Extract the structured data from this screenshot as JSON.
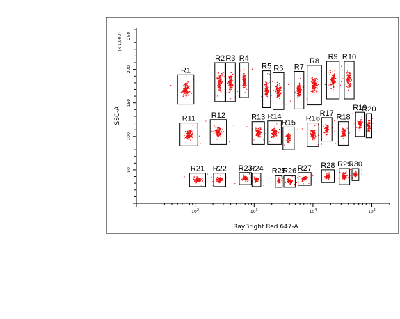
{
  "chart_data": {
    "type": "scatter",
    "xlabel": "RayBright Red 647-A",
    "ylabel": "SSC-A",
    "y_unit": "(x 1,000)",
    "x_scale": "log",
    "xlim": [
      10,
      200000
    ],
    "ylim": [
      0,
      262
    ],
    "x_ticks": [
      {
        "value": 100,
        "base": "10",
        "exp": "2"
      },
      {
        "value": 1000,
        "base": "10",
        "exp": "3"
      },
      {
        "value": 10000,
        "base": "10",
        "exp": "4"
      },
      {
        "value": 100000,
        "base": "10",
        "exp": "5"
      }
    ],
    "y_ticks": [
      {
        "value": 50,
        "label": "50"
      },
      {
        "value": 100,
        "label": "100"
      },
      {
        "value": 150,
        "label": "150"
      },
      {
        "value": 200,
        "label": "200"
      },
      {
        "value": 250,
        "label": "250"
      }
    ],
    "marker_color": "#ee1111",
    "gates": [
      {
        "name": "R1",
        "x": [
          50,
          95
        ],
        "y": [
          148,
          192
        ]
      },
      {
        "name": "R2",
        "x": [
          215,
          320
        ],
        "y": [
          152,
          210
        ]
      },
      {
        "name": "R3",
        "x": [
          330,
          480
        ],
        "y": [
          152,
          210
        ]
      },
      {
        "name": "R4",
        "x": [
          570,
          800
        ],
        "y": [
          158,
          210
        ]
      },
      {
        "name": "R5",
        "x": [
          1400,
          1900
        ],
        "y": [
          143,
          198
        ]
      },
      {
        "name": "R6",
        "x": [
          2100,
          3200
        ],
        "y": [
          140,
          195
        ]
      },
      {
        "name": "R7",
        "x": [
          4800,
          7000
        ],
        "y": [
          141,
          197
        ]
      },
      {
        "name": "R8",
        "x": [
          8000,
          14000
        ],
        "y": [
          147,
          206
        ]
      },
      {
        "name": "R9",
        "x": [
          17000,
          28000
        ],
        "y": [
          156,
          212
        ]
      },
      {
        "name": "R10",
        "x": [
          34000,
          50000
        ],
        "y": [
          156,
          212
        ]
      },
      {
        "name": "R11",
        "x": [
          55,
          110
        ],
        "y": [
          86,
          120
        ]
      },
      {
        "name": "R12",
        "x": [
          180,
          340
        ],
        "y": [
          88,
          125
        ]
      },
      {
        "name": "R13",
        "x": [
          920,
          1500
        ],
        "y": [
          88,
          122
        ]
      },
      {
        "name": "R14",
        "x": [
          1700,
          2900
        ],
        "y": [
          88,
          123
        ]
      },
      {
        "name": "R15",
        "x": [
          3100,
          4800
        ],
        "y": [
          80,
          114
        ]
      },
      {
        "name": "R16",
        "x": [
          8000,
          12500
        ],
        "y": [
          85,
          120
        ]
      },
      {
        "name": "R17",
        "x": [
          14000,
          21000
        ],
        "y": [
          93,
          128
        ]
      },
      {
        "name": "R18",
        "x": [
          27000,
          40000
        ],
        "y": [
          87,
          122
        ]
      },
      {
        "name": "R19",
        "x": [
          53000,
          74000
        ],
        "y": [
          100,
          136
        ]
      },
      {
        "name": "R20",
        "x": [
          80000,
          100000
        ],
        "y": [
          98,
          134
        ]
      },
      {
        "name": "R21",
        "x": [
          80,
          150
        ],
        "y": [
          25,
          45
        ]
      },
      {
        "name": "R22",
        "x": [
          205,
          330
        ],
        "y": [
          25,
          45
        ]
      },
      {
        "name": "R23",
        "x": [
          560,
          900
        ],
        "y": [
          28,
          46
        ]
      },
      {
        "name": "R24",
        "x": [
          920,
          1300
        ],
        "y": [
          25,
          45
        ]
      },
      {
        "name": "R25",
        "x": [
          2300,
          3000
        ],
        "y": [
          24,
          42
        ]
      },
      {
        "name": "R26",
        "x": [
          3200,
          5000
        ],
        "y": [
          24,
          42
        ]
      },
      {
        "name": "R27",
        "x": [
          5600,
          9300
        ],
        "y": [
          27,
          46
        ]
      },
      {
        "name": "R28",
        "x": [
          14000,
          23000
        ],
        "y": [
          31,
          50
        ]
      },
      {
        "name": "R29",
        "x": [
          28000,
          42000
        ],
        "y": [
          28,
          52
        ]
      },
      {
        "name": "R30",
        "x": [
          46000,
          60000
        ],
        "y": [
          34,
          52
        ]
      }
    ]
  }
}
